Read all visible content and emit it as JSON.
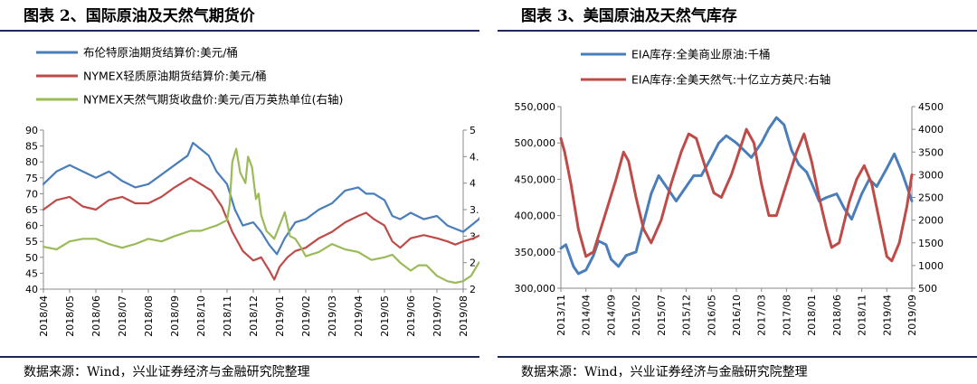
{
  "left_panel": {
    "title": "图表 2、国际原油及天然气期货价",
    "source": "数据来源：Wind，兴业证券经济与金融研究院整理"
  },
  "right_panel": {
    "title": "图表 3、美国原油及天然气库存",
    "source": "数据来源：Wind，兴业证券经济与金融研究院整理"
  },
  "colors": {
    "blue": "#4a7ebb",
    "red": "#be4b48",
    "green": "#9bbb59",
    "rule": "#1c2a55"
  },
  "chart_data": [
    {
      "type": "line",
      "y_left": {
        "lim": [
          40,
          90
        ],
        "ticks": [
          40,
          45,
          50,
          55,
          60,
          65,
          70,
          75,
          80,
          85,
          90
        ]
      },
      "y_right": {
        "lim": [
          2,
          5
        ],
        "ticks": [
          "2",
          "2.5",
          "3",
          "3.5",
          "4",
          "4.5",
          "5"
        ]
      },
      "x_ticks": [
        "2018/04",
        "2018/05",
        "2018/06",
        "2018/07",
        "2018/08",
        "2018/09",
        "2018/10",
        "2018/11",
        "2018/12",
        "2019/01",
        "2019/02",
        "2019/03",
        "2019/04",
        "2019/05",
        "2019/06",
        "2019/07",
        "2019/08"
      ],
      "series": [
        {
          "name": "布伦特原油期货结算价:美元/桶",
          "axis": "left",
          "color": "#4a7ebb",
          "points": [
            [
              0,
              73
            ],
            [
              0.5,
              77
            ],
            [
              1,
              79
            ],
            [
              1.5,
              77
            ],
            [
              2,
              75
            ],
            [
              2.5,
              77
            ],
            [
              3,
              74
            ],
            [
              3.5,
              72
            ],
            [
              4,
              73
            ],
            [
              4.5,
              76
            ],
            [
              5,
              79
            ],
            [
              5.5,
              82
            ],
            [
              5.7,
              86
            ],
            [
              6,
              84
            ],
            [
              6.3,
              82
            ],
            [
              6.6,
              77
            ],
            [
              7,
              73
            ],
            [
              7.3,
              65
            ],
            [
              7.6,
              60
            ],
            [
              8,
              61
            ],
            [
              8.3,
              58
            ],
            [
              8.6,
              54
            ],
            [
              8.9,
              51
            ],
            [
              9.2,
              56
            ],
            [
              9.6,
              61
            ],
            [
              10,
              62
            ],
            [
              10.5,
              65
            ],
            [
              11,
              67
            ],
            [
              11.5,
              71
            ],
            [
              12,
              72
            ],
            [
              12.3,
              70
            ],
            [
              12.6,
              70
            ],
            [
              13,
              68
            ],
            [
              13.3,
              63
            ],
            [
              13.6,
              62
            ],
            [
              14,
              64
            ],
            [
              14.5,
              62
            ],
            [
              15,
              63
            ],
            [
              15.4,
              60
            ],
            [
              15.7,
              59
            ],
            [
              16,
              58
            ],
            [
              16.3,
              60
            ],
            [
              16.6,
              62
            ],
            [
              16.9,
              66
            ]
          ]
        },
        {
          "name": "NYMEX轻质原油期货结算价:美元/桶",
          "axis": "left",
          "color": "#be4b48",
          "points": [
            [
              0,
              65
            ],
            [
              0.5,
              68
            ],
            [
              1,
              69
            ],
            [
              1.5,
              66
            ],
            [
              2,
              65
            ],
            [
              2.5,
              68
            ],
            [
              3,
              69
            ],
            [
              3.5,
              67
            ],
            [
              4,
              67
            ],
            [
              4.5,
              69
            ],
            [
              5,
              72
            ],
            [
              5.6,
              75
            ],
            [
              6,
              73
            ],
            [
              6.4,
              71
            ],
            [
              6.8,
              66
            ],
            [
              7.2,
              58
            ],
            [
              7.6,
              52
            ],
            [
              8,
              49
            ],
            [
              8.3,
              50
            ],
            [
              8.6,
              46
            ],
            [
              8.8,
              43
            ],
            [
              9,
              47
            ],
            [
              9.3,
              50
            ],
            [
              9.6,
              52
            ],
            [
              10,
              53
            ],
            [
              10.5,
              56
            ],
            [
              11,
              58
            ],
            [
              11.5,
              61
            ],
            [
              12,
              63
            ],
            [
              12.3,
              64
            ],
            [
              12.6,
              62
            ],
            [
              13,
              60
            ],
            [
              13.3,
              55
            ],
            [
              13.6,
              53
            ],
            [
              14,
              56
            ],
            [
              14.5,
              57
            ],
            [
              15,
              56
            ],
            [
              15.4,
              55
            ],
            [
              15.7,
              54
            ],
            [
              16,
              55
            ],
            [
              16.4,
              56
            ],
            [
              16.9,
              58
            ]
          ]
        },
        {
          "name": "NYMEX天然气期货收盘价:美元/百万英热单位(右轴)",
          "axis": "right",
          "color": "#9bbb59",
          "points": [
            [
              0,
              2.8
            ],
            [
              0.5,
              2.75
            ],
            [
              1,
              2.9
            ],
            [
              1.5,
              2.95
            ],
            [
              2,
              2.95
            ],
            [
              2.5,
              2.85
            ],
            [
              3,
              2.78
            ],
            [
              3.5,
              2.85
            ],
            [
              4,
              2.95
            ],
            [
              4.5,
              2.9
            ],
            [
              5,
              3.0
            ],
            [
              5.3,
              3.05
            ],
            [
              5.6,
              3.1
            ],
            [
              6,
              3.1
            ],
            [
              6.3,
              3.15
            ],
            [
              6.6,
              3.2
            ],
            [
              6.8,
              3.25
            ],
            [
              7,
              3.3
            ],
            [
              7.1,
              3.6
            ],
            [
              7.2,
              4.4
            ],
            [
              7.35,
              4.65
            ],
            [
              7.5,
              4.2
            ],
            [
              7.6,
              4.1
            ],
            [
              7.7,
              4.0
            ],
            [
              7.8,
              4.5
            ],
            [
              7.95,
              4.3
            ],
            [
              8.1,
              3.7
            ],
            [
              8.2,
              3.8
            ],
            [
              8.3,
              3.4
            ],
            [
              8.5,
              3.1
            ],
            [
              8.7,
              3.0
            ],
            [
              8.8,
              2.95
            ],
            [
              9,
              3.2
            ],
            [
              9.2,
              3.45
            ],
            [
              9.4,
              3.0
            ],
            [
              9.6,
              2.95
            ],
            [
              9.8,
              2.8
            ],
            [
              10,
              2.62
            ],
            [
              10.5,
              2.7
            ],
            [
              11,
              2.85
            ],
            [
              11.5,
              2.75
            ],
            [
              12,
              2.7
            ],
            [
              12.5,
              2.55
            ],
            [
              13,
              2.6
            ],
            [
              13.3,
              2.65
            ],
            [
              13.6,
              2.5
            ],
            [
              14,
              2.35
            ],
            [
              14.3,
              2.45
            ],
            [
              14.6,
              2.45
            ],
            [
              15,
              2.25
            ],
            [
              15.4,
              2.15
            ],
            [
              15.7,
              2.12
            ],
            [
              16,
              2.15
            ],
            [
              16.3,
              2.25
            ],
            [
              16.6,
              2.5
            ],
            [
              16.9,
              2.6
            ]
          ]
        }
      ]
    },
    {
      "type": "line",
      "y_left": {
        "lim": [
          300000,
          550000
        ],
        "ticks": [
          "300,000",
          "350,000",
          "400,000",
          "450,000",
          "500,000",
          "550,000"
        ]
      },
      "y_right": {
        "lim": [
          500,
          4500
        ],
        "ticks": [
          500,
          1000,
          1500,
          2000,
          2500,
          3000,
          3500,
          4000,
          4500
        ]
      },
      "x_ticks": [
        "2013/11",
        "2014/04",
        "2014/09",
        "2015/02",
        "2015/07",
        "2015/12",
        "2016/05",
        "2016/10",
        "2017/03",
        "2017/08",
        "2018/01",
        "2018/06",
        "2018/11",
        "2019/04",
        "2019/09"
      ],
      "series": [
        {
          "name": "EIA库存:全美商业原油:千桶",
          "axis": "left",
          "color": "#4a7ebb",
          "points": [
            [
              0,
              355000
            ],
            [
              0.2,
              360000
            ],
            [
              0.5,
              330000
            ],
            [
              0.7,
              320000
            ],
            [
              1,
              325000
            ],
            [
              1.3,
              345000
            ],
            [
              1.5,
              365000
            ],
            [
              1.8,
              360000
            ],
            [
              2,
              340000
            ],
            [
              2.3,
              330000
            ],
            [
              2.6,
              345000
            ],
            [
              3,
              350000
            ],
            [
              3.3,
              390000
            ],
            [
              3.6,
              430000
            ],
            [
              3.9,
              455000
            ],
            [
              4.2,
              440000
            ],
            [
              4.6,
              420000
            ],
            [
              5,
              440000
            ],
            [
              5.3,
              455000
            ],
            [
              5.6,
              455000
            ],
            [
              6,
              480000
            ],
            [
              6.3,
              500000
            ],
            [
              6.6,
              510000
            ],
            [
              7,
              500000
            ],
            [
              7.3,
              490000
            ],
            [
              7.6,
              480000
            ],
            [
              8,
              500000
            ],
            [
              8.3,
              520000
            ],
            [
              8.6,
              535000
            ],
            [
              8.9,
              525000
            ],
            [
              9.2,
              490000
            ],
            [
              9.5,
              470000
            ],
            [
              9.8,
              460000
            ],
            [
              10,
              445000
            ],
            [
              10.3,
              420000
            ],
            [
              10.6,
              425000
            ],
            [
              11,
              430000
            ],
            [
              11.3,
              410000
            ],
            [
              11.6,
              395000
            ],
            [
              12,
              430000
            ],
            [
              12.3,
              450000
            ],
            [
              12.6,
              440000
            ],
            [
              13,
              465000
            ],
            [
              13.3,
              485000
            ],
            [
              13.6,
              460000
            ],
            [
              13.8,
              440000
            ],
            [
              14,
              420000
            ]
          ]
        },
        {
          "name": "EIA库存:全美天然气:十亿立方英尺:右轴",
          "axis": "right",
          "color": "#be4b48",
          "points": [
            [
              0,
              3800
            ],
            [
              0.15,
              3500
            ],
            [
              0.4,
              2800
            ],
            [
              0.7,
              1800
            ],
            [
              1,
              1200
            ],
            [
              1.3,
              1300
            ],
            [
              1.7,
              2000
            ],
            [
              2.2,
              2900
            ],
            [
              2.5,
              3500
            ],
            [
              2.7,
              3300
            ],
            [
              3,
              2500
            ],
            [
              3.3,
              1800
            ],
            [
              3.6,
              1500
            ],
            [
              4,
              2000
            ],
            [
              4.4,
              2800
            ],
            [
              4.8,
              3500
            ],
            [
              5.1,
              3900
            ],
            [
              5.4,
              3800
            ],
            [
              5.8,
              3100
            ],
            [
              6.1,
              2600
            ],
            [
              6.4,
              2500
            ],
            [
              6.8,
              3000
            ],
            [
              7.1,
              3500
            ],
            [
              7.4,
              4000
            ],
            [
              7.7,
              3700
            ],
            [
              8,
              2800
            ],
            [
              8.3,
              2100
            ],
            [
              8.6,
              2100
            ],
            [
              9,
              2800
            ],
            [
              9.4,
              3500
            ],
            [
              9.7,
              3900
            ],
            [
              10,
              3300
            ],
            [
              10.3,
              2500
            ],
            [
              10.6,
              1800
            ],
            [
              10.8,
              1400
            ],
            [
              11.1,
              1500
            ],
            [
              11.5,
              2400
            ],
            [
              11.8,
              2900
            ],
            [
              12.1,
              3200
            ],
            [
              12.4,
              2800
            ],
            [
              12.7,
              2000
            ],
            [
              13,
              1200
            ],
            [
              13.2,
              1100
            ],
            [
              13.5,
              1500
            ],
            [
              13.8,
              2300
            ],
            [
              14,
              3000
            ]
          ]
        }
      ]
    }
  ]
}
